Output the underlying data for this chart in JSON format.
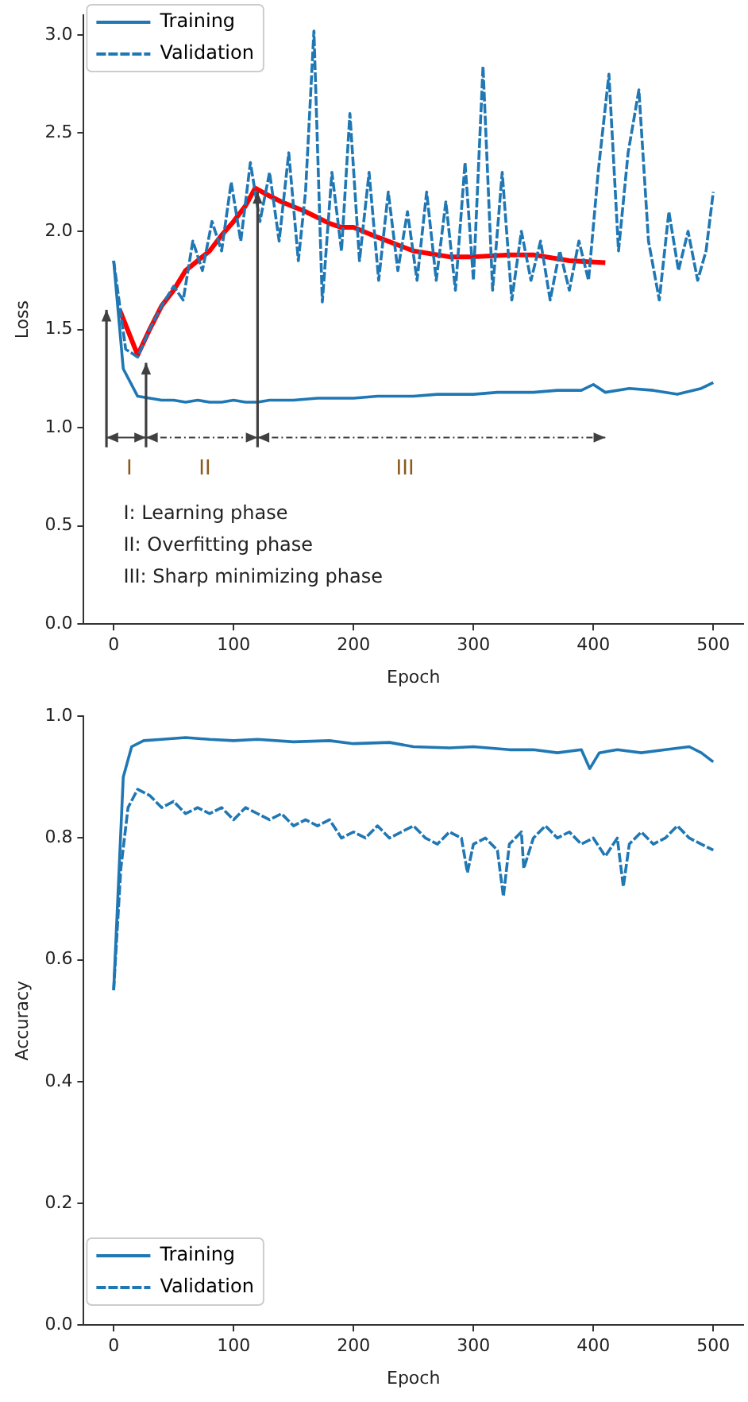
{
  "chart_data": [
    {
      "type": "line",
      "xlabel": "Epoch",
      "ylabel": "Loss",
      "xlim": [
        -25,
        525
      ],
      "xticks": [
        0,
        100,
        200,
        300,
        400,
        500
      ],
      "ylim": [
        0,
        3.1
      ],
      "yticks": [
        {
          "value": 0,
          "label": "0.0"
        },
        0.5,
        {
          "value": 1,
          "label": "1.0"
        },
        1.5,
        {
          "value": 2,
          "label": "2.0"
        },
        2.5,
        {
          "value": 3,
          "label": "3.0"
        }
      ],
      "grid": false,
      "legend": "top left",
      "marker": "none",
      "annotations": [
        "I",
        "II",
        "III",
        "I: Learning phase",
        "II: Overfitting phase",
        "III: Sharp minimizing phase"
      ],
      "series": [
        {
          "name": "Training",
          "color": "#1f77b4",
          "line_style": "solid",
          "x": [
            0,
            8,
            20,
            30,
            40,
            50,
            60,
            70,
            80,
            90,
            100,
            110,
            120,
            130,
            150,
            170,
            200,
            220,
            250,
            270,
            300,
            320,
            350,
            370,
            390,
            400,
            410,
            430,
            450,
            470,
            490,
            500
          ],
          "values": [
            1.85,
            1.3,
            1.16,
            1.15,
            1.14,
            1.14,
            1.13,
            1.14,
            1.13,
            1.13,
            1.14,
            1.13,
            1.13,
            1.14,
            1.14,
            1.15,
            1.15,
            1.16,
            1.16,
            1.17,
            1.17,
            1.18,
            1.18,
            1.19,
            1.19,
            1.22,
            1.18,
            1.2,
            1.19,
            1.17,
            1.2,
            1.23
          ]
        },
        {
          "name": "Validation",
          "color": "#1f77b4",
          "line_style": "dashed",
          "x": [
            0,
            10,
            20,
            30,
            40,
            50,
            58,
            66,
            74,
            82,
            90,
            98,
            106,
            114,
            122,
            130,
            138,
            146,
            154,
            160,
            167,
            174,
            182,
            190,
            197,
            205,
            213,
            221,
            229,
            237,
            245,
            253,
            261,
            269,
            277,
            285,
            293,
            300,
            308,
            316,
            324,
            332,
            340,
            348,
            356,
            364,
            372,
            380,
            388,
            396,
            404,
            413,
            421,
            429,
            438,
            446,
            455,
            463,
            471,
            479,
            487,
            494,
            500
          ],
          "values": [
            1.85,
            1.4,
            1.36,
            1.5,
            1.62,
            1.72,
            1.65,
            1.95,
            1.8,
            2.05,
            1.9,
            2.25,
            1.95,
            2.35,
            2.05,
            2.3,
            1.95,
            2.4,
            1.85,
            2.2,
            3.02,
            1.64,
            2.3,
            1.9,
            2.6,
            1.85,
            2.3,
            1.75,
            2.2,
            1.8,
            2.1,
            1.75,
            2.2,
            1.75,
            2.15,
            1.7,
            2.35,
            1.75,
            2.84,
            1.7,
            2.3,
            1.65,
            2.0,
            1.75,
            1.95,
            1.65,
            1.9,
            1.7,
            1.95,
            1.75,
            2.3,
            2.8,
            1.9,
            2.4,
            2.72,
            1.95,
            1.65,
            2.1,
            1.8,
            2.0,
            1.75,
            1.9,
            2.2
          ]
        },
        {
          "color": "#ff0000",
          "line_style": "solid",
          "x": [
            5,
            20,
            30,
            40,
            50,
            60,
            70,
            80,
            90,
            100,
            110,
            118,
            130,
            140,
            160,
            180,
            190,
            200,
            220,
            250,
            280,
            300,
            330,
            350,
            380,
            410
          ],
          "values": [
            1.6,
            1.37,
            1.5,
            1.62,
            1.7,
            1.8,
            1.85,
            1.9,
            1.98,
            2.05,
            2.13,
            2.22,
            2.18,
            2.15,
            2.1,
            2.04,
            2.02,
            2.02,
            1.97,
            1.9,
            1.87,
            1.87,
            1.88,
            1.88,
            1.85,
            1.84
          ]
        }
      ]
    },
    {
      "type": "line",
      "xlabel": "Epoch",
      "ylabel": "Accuracy",
      "xlim": [
        -25,
        525
      ],
      "xticks": [
        0,
        100,
        200,
        300,
        400,
        500
      ],
      "ylim": [
        0,
        1.0
      ],
      "yticks": [
        {
          "value": 0,
          "label": "0.0"
        },
        0.2,
        0.4,
        0.6,
        0.8,
        {
          "value": 1,
          "label": "1.0"
        }
      ],
      "grid": false,
      "legend": "bottom left",
      "marker": "none",
      "series": [
        {
          "name": "Training",
          "color": "#1f77b4",
          "line_style": "solid",
          "x": [
            0,
            8,
            15,
            25,
            40,
            60,
            80,
            100,
            120,
            150,
            180,
            200,
            230,
            250,
            280,
            300,
            330,
            350,
            370,
            390,
            397,
            405,
            420,
            440,
            460,
            480,
            490,
            500
          ],
          "values": [
            0.55,
            0.9,
            0.95,
            0.96,
            0.962,
            0.965,
            0.962,
            0.96,
            0.962,
            0.958,
            0.96,
            0.955,
            0.957,
            0.95,
            0.948,
            0.95,
            0.945,
            0.945,
            0.94,
            0.945,
            0.914,
            0.94,
            0.945,
            0.94,
            0.945,
            0.95,
            0.94,
            0.925
          ]
        },
        {
          "name": "Validation",
          "color": "#1f77b4",
          "line_style": "dashed",
          "x": [
            0,
            6,
            12,
            20,
            30,
            40,
            50,
            60,
            70,
            80,
            90,
            100,
            110,
            120,
            130,
            140,
            150,
            160,
            170,
            180,
            190,
            200,
            210,
            220,
            230,
            240,
            250,
            260,
            270,
            280,
            290,
            295,
            300,
            310,
            320,
            325,
            330,
            340,
            342,
            350,
            360,
            370,
            380,
            390,
            400,
            410,
            420,
            425,
            430,
            440,
            450,
            460,
            470,
            480,
            490,
            500
          ],
          "values": [
            0.55,
            0.75,
            0.85,
            0.88,
            0.87,
            0.85,
            0.86,
            0.84,
            0.85,
            0.84,
            0.85,
            0.83,
            0.85,
            0.84,
            0.83,
            0.84,
            0.82,
            0.83,
            0.82,
            0.83,
            0.8,
            0.81,
            0.8,
            0.82,
            0.8,
            0.81,
            0.82,
            0.8,
            0.79,
            0.81,
            0.8,
            0.743,
            0.79,
            0.8,
            0.78,
            0.704,
            0.79,
            0.81,
            0.75,
            0.8,
            0.82,
            0.8,
            0.81,
            0.79,
            0.8,
            0.77,
            0.8,
            0.72,
            0.79,
            0.81,
            0.79,
            0.8,
            0.82,
            0.8,
            0.79,
            0.78
          ]
        }
      ]
    }
  ]
}
